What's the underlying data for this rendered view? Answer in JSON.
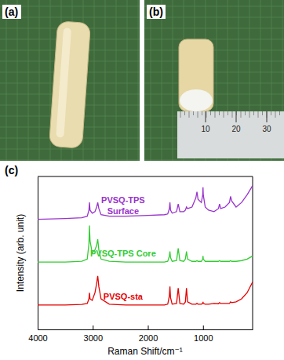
{
  "panels": [
    {
      "label": "(a)"
    },
    {
      "label": "(b)",
      "ruler_ticks": [
        10,
        20,
        30
      ]
    },
    {
      "label": "(c)"
    }
  ],
  "chart_data": {
    "type": "line",
    "x_label": "Raman Shift/cm⁻¹",
    "y_label": "Intensity (arb. unit)",
    "x": [
      4000,
      3500,
      3200,
      3100,
      3070,
      3060,
      3050,
      3010,
      2960,
      2930,
      2910,
      2890,
      2850,
      2700,
      2400,
      2000,
      1700,
      1640,
      1610,
      1600,
      1590,
      1560,
      1480,
      1450,
      1420,
      1350,
      1320,
      1300,
      1280,
      1200,
      1130,
      1110,
      1090,
      1030,
      1005,
      1000,
      995,
      960,
      900,
      800,
      720,
      700,
      680,
      600,
      520,
      500,
      480,
      400,
      300,
      200,
      100
    ],
    "series": [
      {
        "name": "PVSQ-TPS Surface",
        "color": "#9933cc",
        "values": [
          72,
          72.5,
          73,
          74,
          78,
          83,
          78,
          76,
          77,
          80,
          83,
          79,
          75,
          74,
          74,
          74.5,
          75,
          75.5,
          79,
          83,
          78,
          76,
          77,
          82,
          77,
          77,
          78,
          80,
          79,
          80,
          86,
          90,
          85,
          83,
          88,
          93,
          88,
          80,
          78,
          77,
          79,
          82,
          79,
          80,
          83,
          87,
          84,
          80,
          83,
          88,
          94
        ]
      },
      {
        "name": "PVSQ-TPS Core",
        "color": "#33cc33",
        "values": [
          44,
          44,
          44.5,
          46,
          56,
          68,
          58,
          50,
          52,
          55,
          59,
          52,
          46,
          44.5,
          44,
          44,
          44,
          44.5,
          48,
          51,
          47,
          44.5,
          45,
          53,
          45,
          44.5,
          46,
          51,
          46,
          44.5,
          44.5,
          45,
          44.5,
          44.5,
          46,
          48,
          46,
          44.5,
          44.5,
          44.5,
          44.5,
          45,
          44.5,
          44.5,
          44.5,
          45,
          44.5,
          44.5,
          45,
          46,
          48
        ]
      },
      {
        "name": "PVSQ-sta",
        "color": "#e60000",
        "values": [
          16,
          16,
          16.3,
          17,
          20,
          24,
          20,
          19,
          24,
          30,
          35,
          28,
          20,
          16.5,
          16,
          16,
          16,
          16.5,
          22,
          28,
          21,
          16.5,
          17,
          27,
          17,
          16.5,
          18,
          27,
          18,
          16.5,
          16.5,
          17,
          16.5,
          16.5,
          17,
          18,
          17,
          16.5,
          16.5,
          17,
          16.8,
          17.5,
          17,
          17,
          17,
          18,
          17.5,
          18,
          20,
          24,
          31
        ]
      }
    ],
    "xlim": [
      4000,
      100
    ],
    "xticks": [
      4000,
      3000,
      2000,
      1000
    ],
    "ylim": [
      0,
      100
    ],
    "tick_labels": "x",
    "grid": false
  }
}
